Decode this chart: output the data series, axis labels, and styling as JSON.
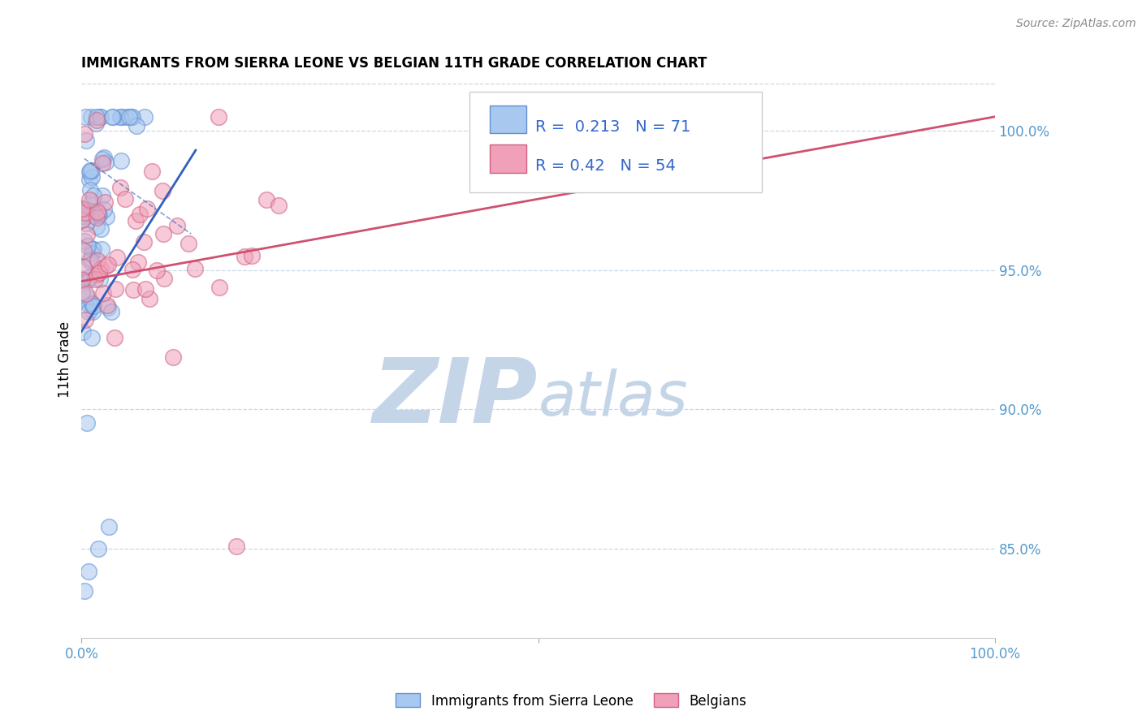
{
  "title": "IMMIGRANTS FROM SIERRA LEONE VS BELGIAN 11TH GRADE CORRELATION CHART",
  "source": "Source: ZipAtlas.com",
  "ylabel": "11th Grade",
  "ytick_labels": [
    "85.0%",
    "90.0%",
    "95.0%",
    "100.0%"
  ],
  "ytick_values": [
    0.85,
    0.9,
    0.95,
    1.0
  ],
  "xmin": 0.0,
  "xmax": 1.0,
  "ymin": 0.818,
  "ymax": 1.018,
  "blue_R": 0.213,
  "blue_N": 71,
  "pink_R": 0.42,
  "pink_N": 54,
  "blue_color": "#A8C8F0",
  "pink_color": "#F0A0B8",
  "blue_edge_color": "#6090D0",
  "pink_edge_color": "#D06080",
  "blue_line_color": "#3060C0",
  "pink_line_color": "#D05070",
  "legend_text_color": "#3366CC",
  "watermark_zip_color": "#C5D5E8",
  "watermark_atlas_color": "#C5D5E8",
  "axis_color": "#5599CC",
  "grid_color": "#C8D8E8",
  "source_color": "#888888"
}
